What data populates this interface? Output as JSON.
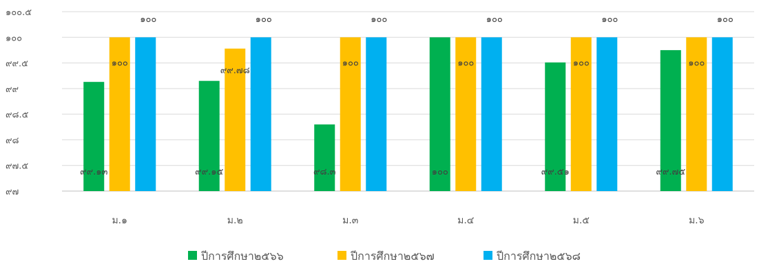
{
  "chart_data": {
    "type": "bar",
    "categories": [
      "ม.๑",
      "ม.๒",
      "ม.๓",
      "ม.๔",
      "ม.๕",
      "ม.๖"
    ],
    "series": [
      {
        "name": "ปีการศึกษา๒๕๖๖",
        "color": "#00B050",
        "values": [
          99.13,
          99.15,
          98.3,
          100,
          99.51,
          99.75
        ],
        "labels": [
          "๙๙.๑๓",
          "๙๙.๑๕",
          "๙๘.๓",
          "๑๐๐",
          "๙๙.๕๑",
          "๙๙.๗๕"
        ]
      },
      {
        "name": "ปีการศึกษา๒๕๖๗",
        "color": "#FFC000",
        "values": [
          100,
          99.78,
          100,
          100,
          100,
          100
        ],
        "labels": [
          "๑๐๐",
          "๙๙.๗๘",
          "๑๐๐",
          "๑๐๐",
          "๑๐๐",
          "๑๐๐"
        ]
      },
      {
        "name": "ปีการศึกษา๒๕๖๘",
        "color": "#00B0F0",
        "values": [
          100,
          100,
          100,
          100,
          100,
          100
        ],
        "labels": [
          "๑๐๐",
          "๑๐๐",
          "๑๐๐",
          "๑๐๐",
          "๑๐๐",
          "๑๐๐"
        ]
      }
    ],
    "ylim": [
      97,
      100.5
    ],
    "yticks": [
      97,
      97.5,
      98,
      98.5,
      99,
      99.5,
      100,
      100.5
    ],
    "ytick_labels": [
      "๙๗",
      "๙๗.๕",
      "๙๘",
      "๙๘.๕",
      "๙๙",
      "๙๙.๕",
      "๑๐๐",
      "๑๐๐.๕"
    ],
    "title": "",
    "xlabel": "",
    "ylabel": "",
    "grid": true,
    "legend_position": "bottom"
  }
}
